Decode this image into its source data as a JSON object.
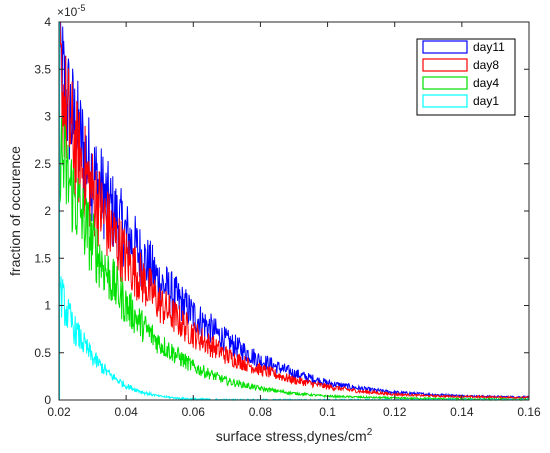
{
  "chart_data": {
    "type": "line",
    "xlabel": "surface stress,dynes/cm",
    "xlabel_superscript": "2",
    "ylabel": "fraction of occurence",
    "y_exponent_label": "×10",
    "y_exponent": "-5",
    "xlim": [
      0.02,
      0.16
    ],
    "ylim": [
      0,
      4
    ],
    "x_ticks": [
      "0.02",
      "0.04",
      "0.06",
      "0.08",
      "0.1",
      "0.12",
      "0.14",
      "0.16"
    ],
    "y_ticks": [
      "0",
      "0.5",
      "1",
      "1.5",
      "2",
      "2.5",
      "3",
      "3.5",
      "4"
    ],
    "legend_position": "top-right",
    "grid": false,
    "series": [
      {
        "name": "day11",
        "color": "#0000ff",
        "x": [
          0.02,
          0.022,
          0.025,
          0.03,
          0.035,
          0.04,
          0.05,
          0.06,
          0.07,
          0.08,
          0.09,
          0.1,
          0.11,
          0.12,
          0.13,
          0.14,
          0.15,
          0.16
        ],
        "values": [
          3.6,
          3.2,
          2.85,
          2.4,
          2.05,
          1.75,
          1.25,
          0.9,
          0.62,
          0.42,
          0.28,
          0.18,
          0.12,
          0.08,
          0.06,
          0.045,
          0.035,
          0.03
        ]
      },
      {
        "name": "day8",
        "color": "#ff0000",
        "x": [
          0.02,
          0.022,
          0.025,
          0.03,
          0.035,
          0.04,
          0.05,
          0.06,
          0.07,
          0.08,
          0.09,
          0.1,
          0.11,
          0.12,
          0.13,
          0.14,
          0.15,
          0.16
        ],
        "values": [
          3.5,
          3.05,
          2.65,
          2.2,
          1.82,
          1.5,
          1.02,
          0.7,
          0.47,
          0.32,
          0.21,
          0.14,
          0.09,
          0.06,
          0.045,
          0.035,
          0.03,
          0.025
        ]
      },
      {
        "name": "day4",
        "color": "#00e000",
        "x": [
          0.02,
          0.022,
          0.025,
          0.03,
          0.035,
          0.04,
          0.045,
          0.05,
          0.06,
          0.07,
          0.08,
          0.09,
          0.1,
          0.12,
          0.14,
          0.16
        ],
        "values": [
          2.7,
          2.4,
          2.1,
          1.65,
          1.3,
          1.0,
          0.78,
          0.6,
          0.35,
          0.2,
          0.12,
          0.07,
          0.04,
          0.02,
          0.01,
          0.005
        ]
      },
      {
        "name": "day1",
        "color": "#00ffff",
        "x": [
          0.02,
          0.022,
          0.025,
          0.03,
          0.035,
          0.04,
          0.045,
          0.05,
          0.055,
          0.06,
          0.07
        ],
        "values": [
          1.2,
          0.95,
          0.72,
          0.45,
          0.27,
          0.15,
          0.08,
          0.04,
          0.02,
          0.01,
          0.0
        ]
      }
    ]
  }
}
